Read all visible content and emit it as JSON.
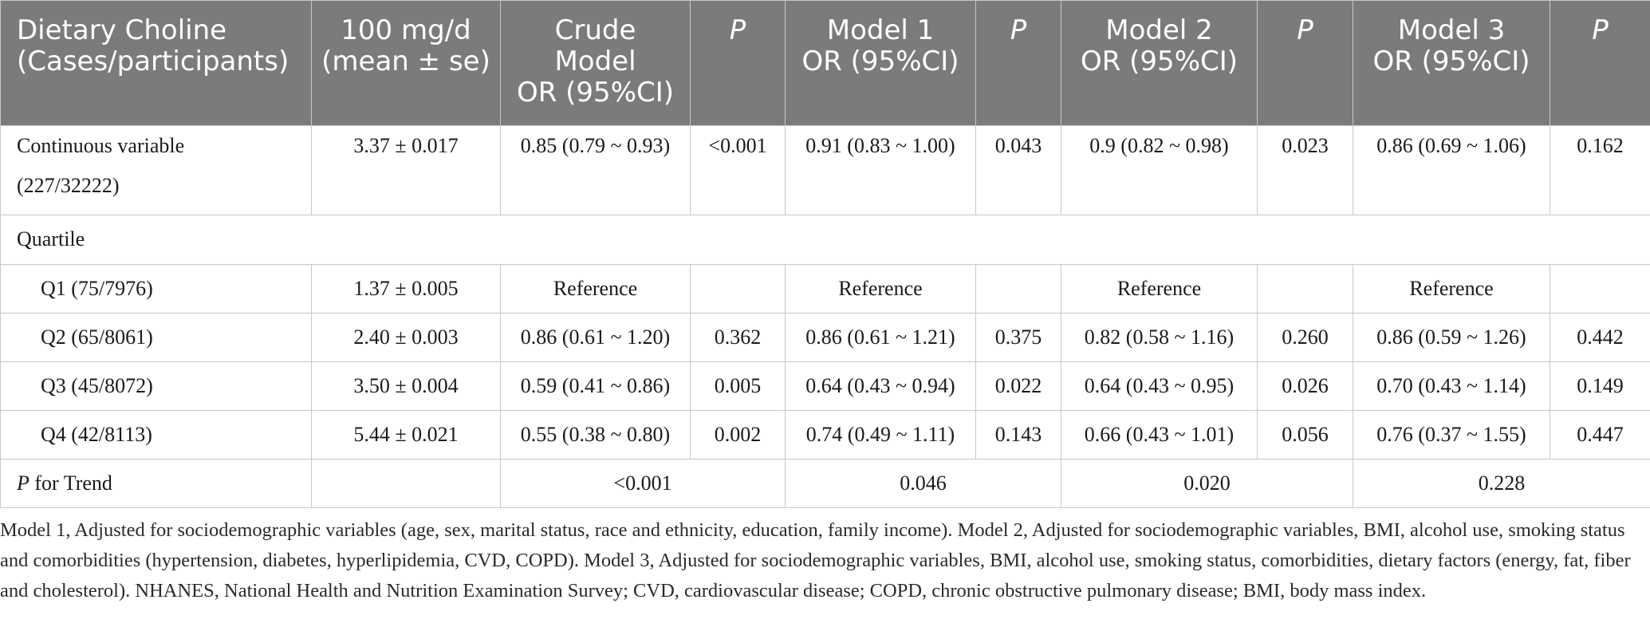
{
  "table": {
    "headers": [
      "Dietary Choline\n(Cases/participants)",
      "100 mg/d\n(mean ± se)",
      "Crude\nModel\nOR (95%CI)",
      "P",
      "Model 1\nOR (95%CI)",
      "P",
      "Model 2\nOR (95%CI)",
      "P",
      "Model 3\nOR (95%CI)",
      "P"
    ],
    "header_lines": {
      "c0": [
        "Dietary Choline",
        "(Cases/participants)"
      ],
      "c1": [
        "100 mg/d",
        "(mean ± se)"
      ],
      "c2": [
        "Crude",
        "Model",
        "OR (95%CI)"
      ],
      "c4": [
        "Model 1",
        "OR (95%CI)"
      ],
      "c6": [
        "Model 2",
        "OR (95%CI)"
      ],
      "c8": [
        "Model 3",
        "OR (95%CI)"
      ],
      "p": "P"
    },
    "continuous": {
      "label_line1": "Continuous variable",
      "label_line2": "(227/32222)",
      "mean": "3.37 ± 0.017",
      "crude": "0.85 (0.79 ~ 0.93)",
      "crude_p": "<0.001",
      "m1": "0.91 (0.83 ~ 1.00)",
      "m1_p": "0.043",
      "m2": "0.9 (0.82 ~ 0.98)",
      "m2_p": "0.023",
      "m3": "0.86 (0.69 ~ 1.06)",
      "m3_p": "0.162"
    },
    "quartile_label": "Quartile",
    "rows": [
      {
        "label": "Q1 (75/7976)",
        "mean": "1.37 ± 0.005",
        "crude": "Reference",
        "crude_p": "",
        "m1": "Reference",
        "m1_p": "",
        "m2": "Reference",
        "m2_p": "",
        "m3": "Reference",
        "m3_p": ""
      },
      {
        "label": "Q2 (65/8061)",
        "mean": "2.40 ± 0.003",
        "crude": "0.86 (0.61 ~ 1.20)",
        "crude_p": "0.362",
        "m1": "0.86 (0.61 ~ 1.21)",
        "m1_p": "0.375",
        "m2": "0.82 (0.58 ~ 1.16)",
        "m2_p": "0.260",
        "m3": "0.86 (0.59 ~ 1.26)",
        "m3_p": "0.442"
      },
      {
        "label": "Q3 (45/8072)",
        "mean": "3.50 ± 0.004",
        "crude": "0.59 (0.41 ~ 0.86)",
        "crude_p": "0.005",
        "m1": "0.64 (0.43 ~ 0.94)",
        "m1_p": "0.022",
        "m2": "0.64 (0.43 ~ 0.95)",
        "m2_p": "0.026",
        "m3": "0.70 (0.43 ~ 1.14)",
        "m3_p": "0.149"
      },
      {
        "label": "Q4 (42/8113)",
        "mean": "5.44 ± 0.021",
        "crude": "0.55 (0.38 ~ 0.80)",
        "crude_p": "0.002",
        "m1": "0.74 (0.49 ~ 1.11)",
        "m1_p": "0.143",
        "m2": "0.66 (0.43 ~ 1.01)",
        "m2_p": "0.056",
        "m3": "0.76 (0.37 ~ 1.55)",
        "m3_p": "0.447"
      }
    ],
    "trend": {
      "label_italic": "P",
      "label_rest": " for Trend",
      "crude": "<0.001",
      "m1": "0.046",
      "m2": "0.020",
      "m3": "0.228"
    }
  },
  "footnote": "Model 1, Adjusted for sociodemographic variables (age, sex, marital status, race and ethnicity, education, family income). Model 2, Adjusted for sociodemographic variables, BMI, alcohol use, smoking status and comorbidities (hypertension, diabetes, hyperlipidemia, CVD, COPD). Model 3, Adjusted for sociodemographic variables, BMI, alcohol use, smoking status, comorbidities, dietary factors (energy, fat, fiber and cholesterol). NHANES, National Health and Nutrition Examination Survey; CVD, cardiovascular disease; COPD, chronic obstructive pulmonary disease; BMI, body mass index."
}
